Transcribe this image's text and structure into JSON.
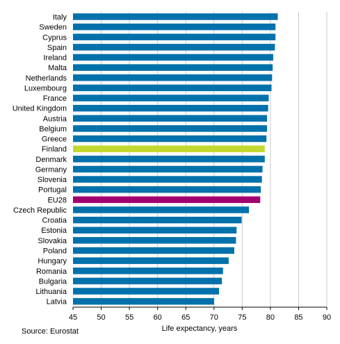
{
  "chart_data": {
    "type": "bar",
    "orientation": "horizontal",
    "categories": [
      "Italy",
      "Sweden",
      "Cyprus",
      "Spain",
      "Ireland",
      "Malta",
      "Netherlands",
      "Luxembourg",
      "France",
      "United Kingdom",
      "Austria",
      "Belgium",
      "Greece",
      "Finland",
      "Denmark",
      "Germany",
      "Slovenia",
      "Portugal",
      "EU28",
      "Czech Republic",
      "Croatia",
      "Estonia",
      "Slovakia",
      "Poland",
      "Hungary",
      "Romania",
      "Bulgaria",
      "Lithuania",
      "Latvia"
    ],
    "values": [
      81.3,
      80.9,
      80.9,
      80.8,
      80.5,
      80.4,
      80.3,
      80.2,
      79.7,
      79.6,
      79.4,
      79.4,
      79.3,
      79.0,
      79.0,
      78.6,
      78.5,
      78.3,
      78.2,
      76.2,
      74.9,
      74.0,
      73.9,
      73.6,
      72.6,
      71.6,
      71.4,
      70.9,
      70.0
    ],
    "highlight": {
      "Finland": "#c3d82f",
      "EU28": "#a0006e"
    },
    "bar_color": "#0071ab",
    "xlabel": "Life expectancy, years",
    "ylabel": "",
    "xlim": [
      45,
      90
    ],
    "xticks": [
      45,
      50,
      55,
      60,
      65,
      70,
      75,
      80,
      85,
      90
    ],
    "grid": true
  },
  "source": "Source: Eurostat"
}
